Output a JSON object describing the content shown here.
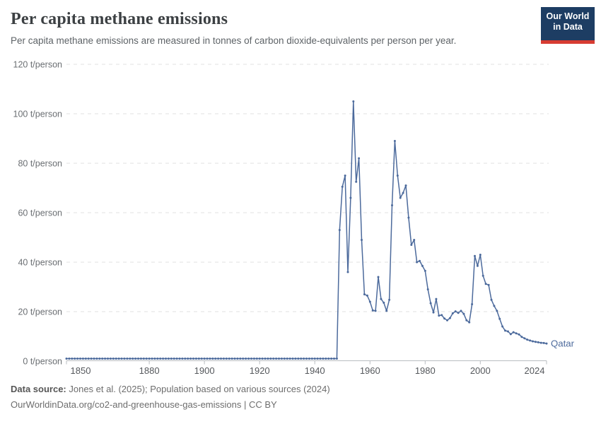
{
  "header": {
    "title": "Per capita methane emissions",
    "subtitle": "Per capita methane emissions are measured in tonnes of carbon dioxide-equivalents per person per year."
  },
  "logo": {
    "line1": "Our World",
    "line2": "in Data",
    "bg_color": "#1d3d63",
    "accent_color": "#d73c32"
  },
  "chart_data": {
    "type": "line",
    "title": "Per capita methane emissions",
    "unit": "t/person",
    "xlim": [
      1850,
      2024
    ],
    "ylim": [
      0,
      120
    ],
    "x_ticks": [
      1850,
      1880,
      1900,
      1920,
      1940,
      1960,
      1980,
      2000,
      2024
    ],
    "y_ticks": [
      0,
      20,
      40,
      60,
      80,
      100,
      120
    ],
    "y_tick_suffix": " t/person",
    "grid": "horizontal-dashed",
    "legend_position": "end-of-line",
    "end_label": "Qatar",
    "line_color": "#4c6a9c",
    "series": [
      {
        "name": "Qatar",
        "color": "#4c6a9c",
        "baseline": {
          "start_year": 1850,
          "end_year": 1948,
          "value": 1.0
        },
        "start_year": 1949,
        "values": [
          53,
          70.5,
          75,
          36,
          66,
          105,
          72.5,
          82,
          49,
          27,
          26.5,
          24,
          20.5,
          20.3,
          34,
          25.1,
          23.6,
          20.3,
          24.8,
          63,
          89,
          75,
          66,
          68,
          71,
          58,
          47,
          49,
          40,
          40.5,
          38.5,
          36.5,
          29,
          23.4,
          19.7,
          25.1,
          18.4,
          18.6,
          17.2,
          16.5,
          17.4,
          19.3,
          20.1,
          19.5,
          20.3,
          19.1,
          16.5,
          15.7,
          23,
          42.5,
          38.5,
          43,
          34.5,
          31.2,
          30.8,
          24.8,
          22.3,
          20.3,
          17.1,
          14,
          12.3,
          12,
          10.9,
          11.7,
          11.2,
          10.8,
          9.8,
          9.2,
          8.7,
          8.3,
          8,
          7.8,
          7.6,
          7.4,
          7.3,
          7.1
        ]
      }
    ]
  },
  "footer": {
    "source_label": "Data source:",
    "source_text": " Jones et al. (2025); Population based on various sources (2024)",
    "citation": "OurWorldinData.org/co2-and-greenhouse-gas-emissions | CC BY"
  }
}
